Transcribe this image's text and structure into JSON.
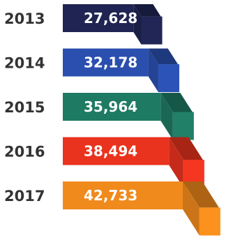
{
  "chart_data": {
    "type": "bar",
    "orientation": "horizontal",
    "title": "",
    "xlabel": "",
    "ylabel": "",
    "legend": "none",
    "grid": false,
    "categories": [
      "2013",
      "2014",
      "2015",
      "2016",
      "2017"
    ],
    "values": [
      27628,
      32178,
      35964,
      38494,
      42733
    ],
    "value_labels": [
      "27,628",
      "32,178",
      "35,964",
      "38,494",
      "42,733"
    ],
    "colors": [
      "#1f2452",
      "#2a4fae",
      "#1e7a63",
      "#e9331e",
      "#f08a1c"
    ]
  }
}
